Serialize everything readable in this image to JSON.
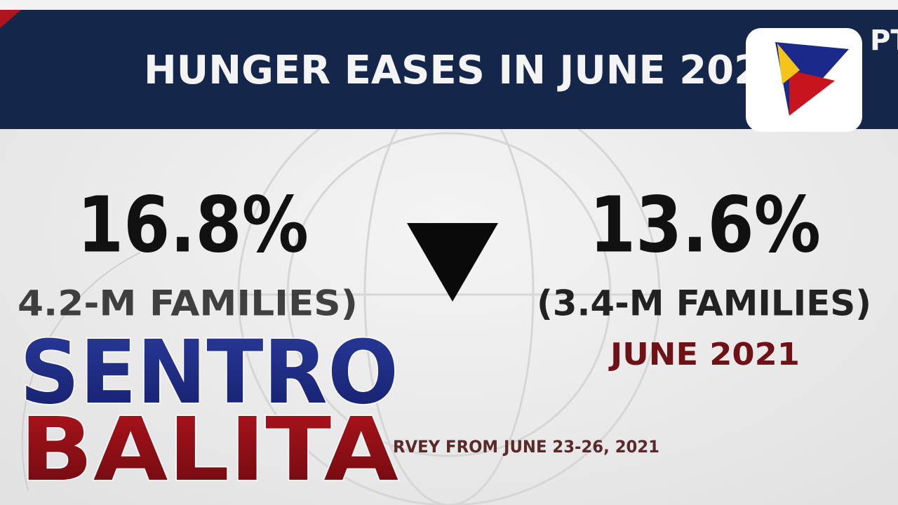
{
  "header": {
    "title": "HUNGER EASES IN JUNE 202",
    "channel": "PT"
  },
  "before": {
    "value": "16.8%",
    "families": "4.2-M FAMILIES)"
  },
  "after": {
    "value": "13.6%",
    "families": "(3.4-M FAMILIES)",
    "period": "JUNE 2021"
  },
  "source": "RVEY FROM JUNE 23-26, 2021",
  "show": {
    "line1": "SENTRO",
    "line2": "BALITA"
  }
}
